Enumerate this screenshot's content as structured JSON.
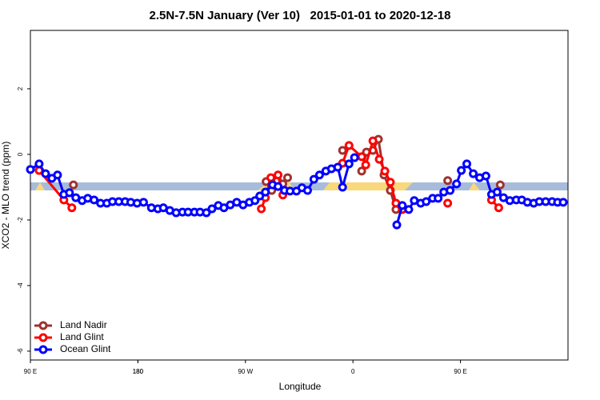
{
  "chart_data": {
    "type": "line",
    "title": "2.5N-7.5N January (Ver 10)   2015-01-01 to 2020-12-18",
    "x_label": "Longitude",
    "y_label": "XCO2 - MLO trend (ppm)",
    "xlim": [
      90,
      540
    ],
    "xticks": [
      {
        "value": 90,
        "label": "90 E"
      },
      180,
      {
        "value": 270,
        "label": "90 W"
      },
      {
        "value": 360,
        "label": "0"
      },
      {
        "value": 450,
        "label": "90 E"
      },
      180.0001
    ],
    "ylim": [
      -6.27,
      3.78
    ],
    "yticks": [
      -6,
      -4,
      -2,
      0,
      2
    ],
    "legend": "bottomleft",
    "series": [
      {
        "name": "Land Nadir",
        "color": "#a0322d",
        "x": [
          126,
          null,
          287.3,
          292,
          296.7,
          301.3,
          305.3,
          null,
          351.3,
          null,
          367.3,
          371.3,
          376.7,
          381.3,
          386,
          391.3,
          396,
          401.3,
          null,
          439.3,
          null,
          483.3
        ],
        "values": [
          -0.93,
          null,
          -0.83,
          -1.1,
          -0.8,
          -0.9,
          -0.71,
          null,
          0.12,
          null,
          -0.51,
          0.07,
          0.12,
          0.46,
          -0.63,
          -1.1,
          -1.68,
          -1.63,
          null,
          -0.8,
          null,
          -0.93
        ]
      },
      {
        "name": "Land Glint",
        "color": "#ff0000",
        "x": [
          97.3,
          118,
          124.7,
          null,
          283.3,
          286.7,
          291.3,
          297.3,
          301.3,
          null,
          351.3,
          356.7,
          367.3,
          370.7,
          376.7,
          382,
          386.7,
          391.3,
          396,
          401.3,
          null,
          439.3,
          null,
          476,
          482
        ],
        "values": [
          -0.49,
          -1.39,
          -1.63,
          null,
          -1.66,
          -1.32,
          -0.71,
          -0.63,
          -1.24,
          null,
          -0.27,
          0.27,
          -0.07,
          -0.32,
          0.41,
          -0.15,
          -0.51,
          -0.85,
          -1.49,
          -1.68,
          null,
          -1.49,
          null,
          -1.39,
          -1.63
        ]
      },
      {
        "name": "Ocean Glint",
        "color": "#0000ff",
        "x": [
          90,
          97.3,
          102.7,
          108,
          112.7,
          118,
          122.7,
          128,
          133.3,
          138,
          143.3,
          148.7,
          154,
          158.7,
          164,
          169.3,
          174,
          179.3,
          184.7,
          191.3,
          196.7,
          201.3,
          206.7,
          212,
          217.3,
          222,
          227.3,
          232,
          237.3,
          242,
          247.3,
          252,
          257.3,
          262.7,
          268,
          273.3,
          278,
          282,
          286.7,
          292.7,
          297.3,
          302.7,
          307.3,
          312.7,
          317.3,
          322,
          327.3,
          332,
          337.3,
          342,
          347.3,
          351.3,
          356.7,
          361.3,
          null,
          396.7,
          401.3,
          406.7,
          411.3,
          416.7,
          421.3,
          426.7,
          431.3,
          436,
          441.3,
          446.7,
          450.7,
          455.3,
          460.7,
          466,
          471.3,
          476,
          480.7,
          486,
          491.3,
          496.7,
          501.3,
          506,
          511.3,
          516,
          521.3,
          526.7,
          531.3,
          536
        ],
        "values": [
          -0.46,
          -0.29,
          -0.59,
          -0.73,
          -0.63,
          -1.22,
          -1.17,
          -1.32,
          -1.41,
          -1.34,
          -1.39,
          -1.49,
          -1.49,
          -1.44,
          -1.44,
          -1.44,
          -1.46,
          -1.49,
          -1.46,
          -1.63,
          -1.66,
          -1.63,
          -1.71,
          -1.78,
          -1.76,
          -1.76,
          -1.76,
          -1.76,
          -1.78,
          -1.66,
          -1.56,
          -1.63,
          -1.54,
          -1.46,
          -1.54,
          -1.46,
          -1.41,
          -1.27,
          -1.15,
          -0.93,
          -0.98,
          -1.1,
          -1.12,
          -1.12,
          -1.02,
          -1.1,
          -0.76,
          -0.63,
          -0.51,
          -0.44,
          -0.39,
          -1.0,
          -0.29,
          -0.1,
          null,
          -2.15,
          -1.56,
          -1.68,
          -1.41,
          -1.49,
          -1.44,
          -1.34,
          -1.34,
          -1.15,
          -1.1,
          -0.9,
          -0.49,
          -0.29,
          -0.59,
          -0.71,
          -0.66,
          -1.22,
          -1.15,
          -1.32,
          -1.41,
          -1.39,
          -1.39,
          -1.46,
          -1.49,
          -1.44,
          -1.44,
          -1.44,
          -1.46,
          -1.46
        ]
      }
    ]
  }
}
